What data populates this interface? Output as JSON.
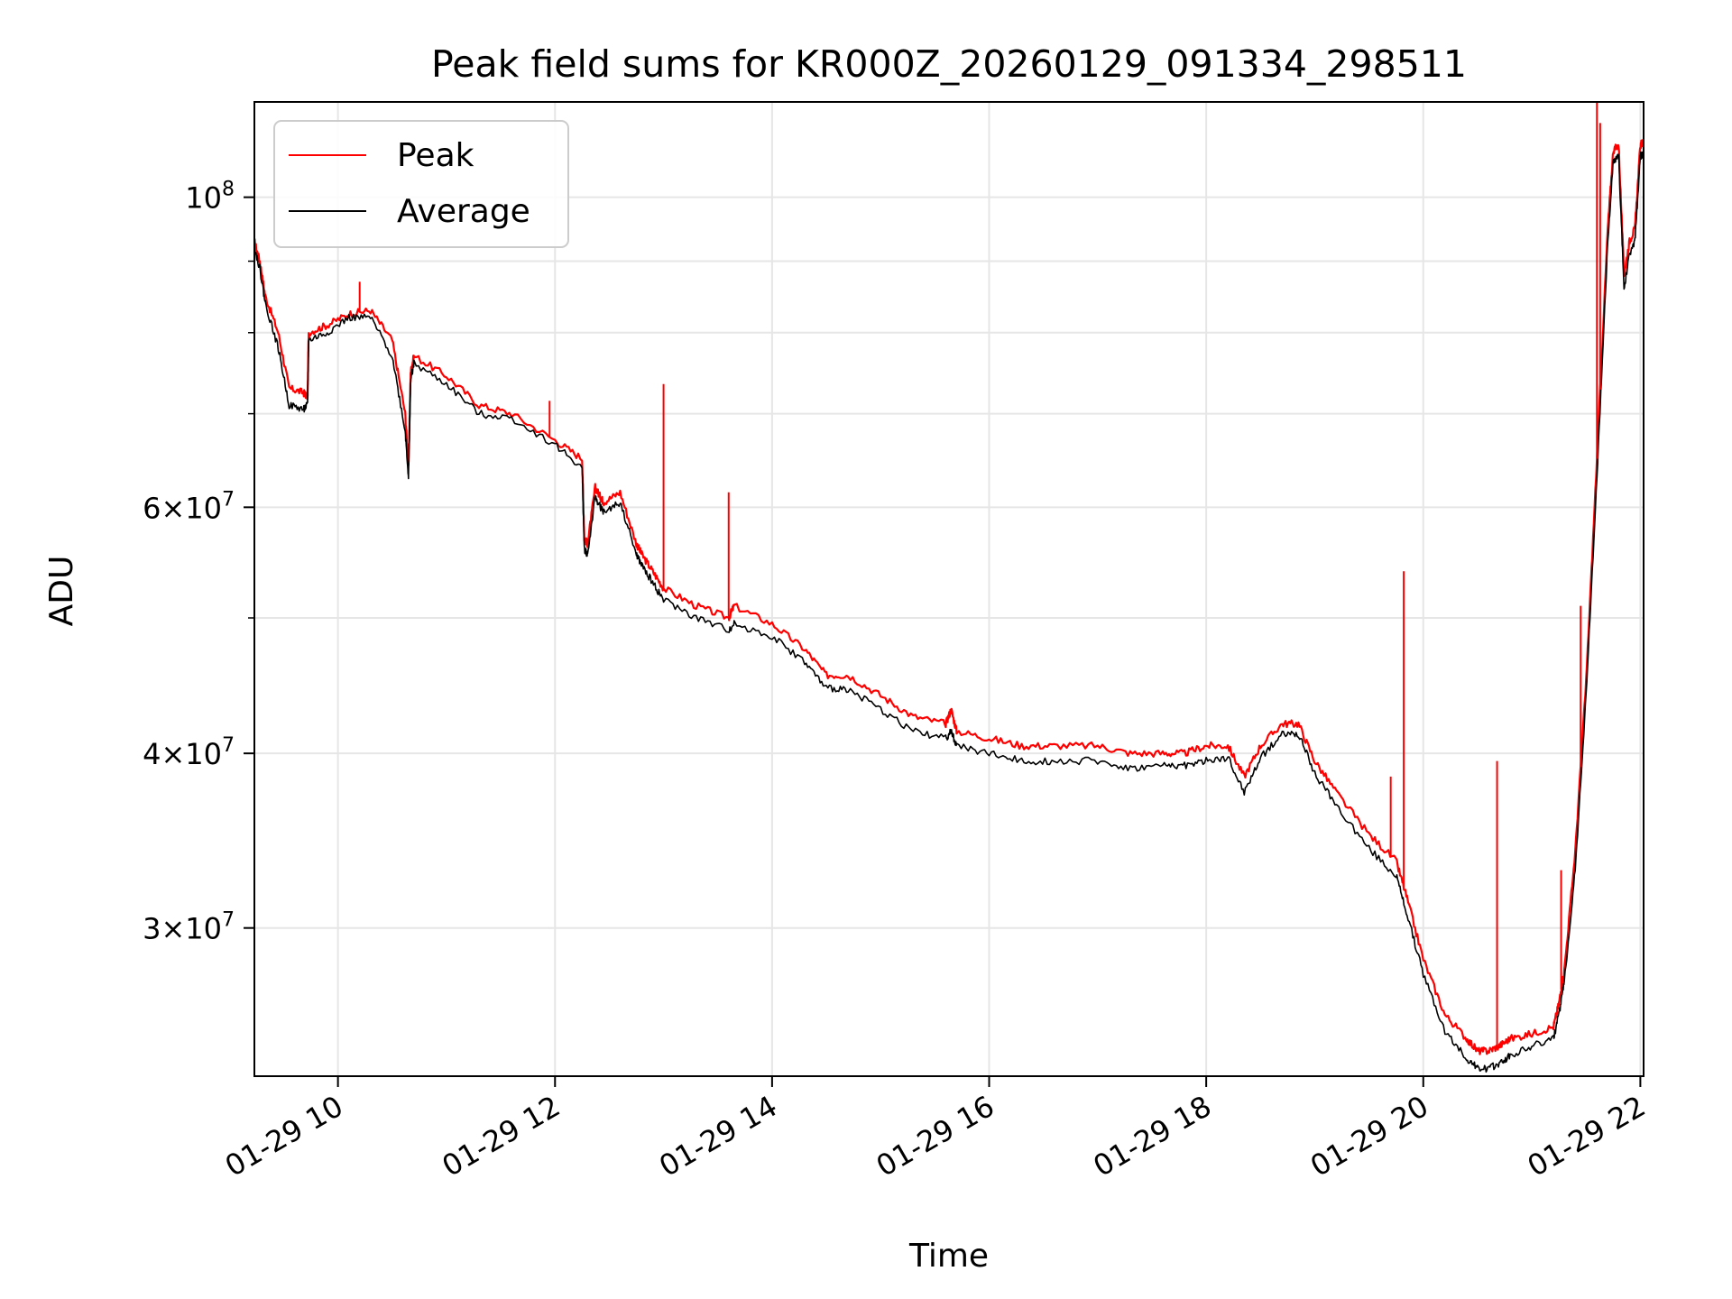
{
  "chart_data": {
    "type": "line",
    "title": "Peak field sums for KR000Z_20260129_091334_298511",
    "xlabel": "Time",
    "ylabel": "ADU",
    "yscale": "log",
    "xlim": [
      9.23,
      22.03
    ],
    "ylim": [
      23500000,
      117000000
    ],
    "grid": true,
    "legend_location": "upper-left",
    "x_ticks": [
      {
        "value": 10,
        "label": "01-29 10"
      },
      {
        "value": 12,
        "label": "01-29 12"
      },
      {
        "value": 14,
        "label": "01-29 14"
      },
      {
        "value": 16,
        "label": "01-29 16"
      },
      {
        "value": 18,
        "label": "01-29 18"
      },
      {
        "value": 20,
        "label": "01-29 20"
      },
      {
        "value": 22,
        "label": "01-29 22"
      }
    ],
    "y_ticks": [
      {
        "value": 30000000,
        "mantissa": "3",
        "base": "10",
        "exp": "7"
      },
      {
        "value": 40000000,
        "mantissa": "4",
        "base": "10",
        "exp": "7"
      },
      {
        "value": 60000000,
        "mantissa": "6",
        "base": "10",
        "exp": "7"
      },
      {
        "value": 100000000,
        "mantissa": "",
        "base": "10",
        "exp": "8"
      }
    ],
    "minor_y_ticks": [
      50000000,
      70000000,
      80000000,
      90000000
    ],
    "series": [
      {
        "name": "Peak",
        "color": "#ff0000",
        "x": [
          9.23,
          9.28,
          9.33,
          9.45,
          9.55,
          9.68,
          9.72,
          9.73,
          9.9,
          10.1,
          10.3,
          10.5,
          10.62,
          10.65,
          10.67,
          10.7,
          11.0,
          11.3,
          11.6,
          12.0,
          12.25,
          12.27,
          12.3,
          12.37,
          12.42,
          12.45,
          12.6,
          12.75,
          12.8,
          12.9,
          13.0,
          13.3,
          13.6,
          13.65,
          14.0,
          14.3,
          14.5,
          14.7,
          15.0,
          15.3,
          15.6,
          15.65,
          15.7,
          16.0,
          16.3,
          16.6,
          17.0,
          17.3,
          17.6,
          17.8,
          18.0,
          18.2,
          18.35,
          18.5,
          18.7,
          18.85,
          19.0,
          19.2,
          19.5,
          19.75,
          19.85,
          20.0,
          20.2,
          20.4,
          20.5,
          20.6,
          20.7,
          20.8,
          21.0,
          21.2,
          21.25,
          21.3,
          21.4,
          21.5,
          21.6,
          21.7,
          21.75,
          21.8,
          21.85,
          21.9,
          21.95,
          22.0,
          22.03
        ],
        "y": [
          93000000,
          90000000,
          85000000,
          80000000,
          73000000,
          72500000,
          72000000,
          80000000,
          81000000,
          82500000,
          83000000,
          79000000,
          70000000,
          64000000,
          75000000,
          77000000,
          74500000,
          71000000,
          70000000,
          67000000,
          65000000,
          57000000,
          56500000,
          62000000,
          61000000,
          60500000,
          61500000,
          56500000,
          55500000,
          54000000,
          52500000,
          51000000,
          50000000,
          51000000,
          49500000,
          47500000,
          45500000,
          45500000,
          44000000,
          42500000,
          42000000,
          43000000,
          41500000,
          41000000,
          40500000,
          40500000,
          40500000,
          40000000,
          40000000,
          40000000,
          40500000,
          40500000,
          38500000,
          40500000,
          42000000,
          42000000,
          39500000,
          37500000,
          35000000,
          33500000,
          31500000,
          28500000,
          26000000,
          25000000,
          24500000,
          24500000,
          24700000,
          25000000,
          25200000,
          25500000,
          26500000,
          28000000,
          34000000,
          45000000,
          65000000,
          95000000,
          108000000,
          109000000,
          88000000,
          93000000,
          95000000,
          109000000,
          109500000
        ]
      },
      {
        "name": "Average",
        "color": "#000000",
        "x": [
          9.23,
          9.28,
          9.33,
          9.45,
          9.55,
          9.68,
          9.72,
          9.73,
          9.9,
          10.1,
          10.3,
          10.5,
          10.62,
          10.65,
          10.67,
          10.7,
          11.0,
          11.3,
          11.6,
          12.0,
          12.25,
          12.27,
          12.3,
          12.37,
          12.42,
          12.45,
          12.6,
          12.75,
          12.8,
          12.9,
          13.0,
          13.3,
          13.6,
          13.65,
          14.0,
          14.3,
          14.5,
          14.7,
          15.0,
          15.3,
          15.6,
          15.65,
          15.7,
          16.0,
          16.3,
          16.6,
          17.0,
          17.3,
          17.6,
          17.8,
          18.0,
          18.2,
          18.35,
          18.5,
          18.7,
          18.85,
          19.0,
          19.2,
          19.5,
          19.75,
          19.85,
          20.0,
          20.2,
          20.4,
          20.5,
          20.6,
          20.7,
          20.8,
          21.0,
          21.2,
          21.25,
          21.3,
          21.4,
          21.5,
          21.6,
          21.7,
          21.75,
          21.8,
          21.85,
          21.9,
          21.95,
          22.0,
          22.03
        ],
        "y": [
          92000000,
          89000000,
          84000000,
          78000000,
          71000000,
          70500000,
          71000000,
          79000000,
          80000000,
          82000000,
          82000000,
          77000000,
          68000000,
          63000000,
          74000000,
          76000000,
          73500000,
          70000000,
          69500000,
          66500000,
          64000000,
          56000000,
          55500000,
          61000000,
          60000000,
          59500000,
          60500000,
          55500000,
          54500000,
          53000000,
          51500000,
          50000000,
          49000000,
          49500000,
          48500000,
          46500000,
          44500000,
          44500000,
          43000000,
          41500000,
          41000000,
          41500000,
          40500000,
          40000000,
          39500000,
          39500000,
          39500000,
          39000000,
          39200000,
          39200000,
          39500000,
          39700000,
          37500000,
          39700000,
          41300000,
          41300000,
          38700000,
          36700000,
          34200000,
          32700000,
          30700000,
          27800000,
          25300000,
          24200000,
          23800000,
          23800000,
          24000000,
          24300000,
          24700000,
          25000000,
          26000000,
          27500000,
          33000000,
          44000000,
          63000000,
          93000000,
          106000000,
          107000000,
          86000000,
          91000000,
          93000000,
          107000000,
          107500000
        ]
      }
    ],
    "spikes": [
      {
        "series": "Peak",
        "x": 10.2,
        "y": 87000000
      },
      {
        "series": "Peak",
        "x": 11.95,
        "y": 71500000
      },
      {
        "series": "Peak",
        "x": 13.0,
        "y": 73500000
      },
      {
        "series": "Peak",
        "x": 13.6,
        "y": 61500000
      },
      {
        "series": "Peak",
        "x": 19.7,
        "y": 38500000
      },
      {
        "series": "Peak",
        "x": 19.82,
        "y": 54000000
      },
      {
        "series": "Peak",
        "x": 20.68,
        "y": 39500000
      },
      {
        "series": "Peak",
        "x": 21.27,
        "y": 33000000
      },
      {
        "series": "Peak",
        "x": 21.45,
        "y": 51000000
      },
      {
        "series": "Peak",
        "x": 21.6,
        "y": 117000000
      },
      {
        "series": "Peak",
        "x": 21.63,
        "y": 113000000
      }
    ]
  }
}
